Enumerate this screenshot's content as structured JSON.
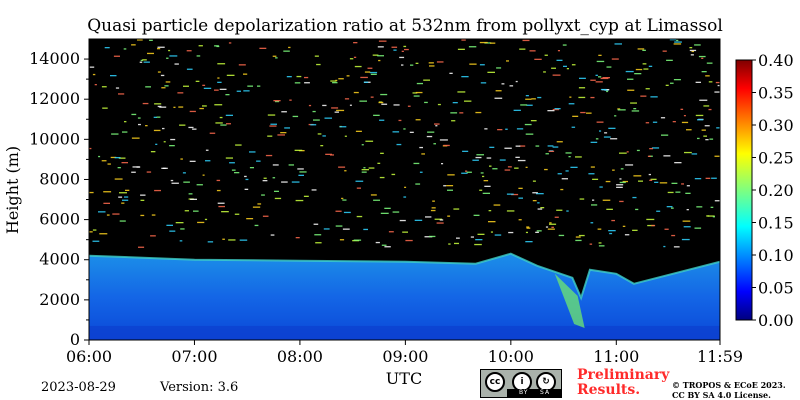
{
  "chart_data": {
    "type": "heatmap",
    "title": "Quasi particle depolarization ratio at 532nm from pollyxt_cyp at Limassol",
    "xlabel": "UTC",
    "ylabel": "Height (m)",
    "x_ticks": [
      "06:00",
      "07:00",
      "08:00",
      "09:00",
      "10:00",
      "11:00",
      "11:59"
    ],
    "x_range": [
      "06:00",
      "11:59"
    ],
    "y_ticks": [
      "0",
      "2000",
      "4000",
      "6000",
      "8000",
      "10000",
      "12000",
      "14000"
    ],
    "ylim": [
      0,
      15000
    ],
    "colorbar": {
      "ticks": [
        "0.00",
        "0.05",
        "0.10",
        "0.15",
        "0.20",
        "0.25",
        "0.30",
        "0.35",
        "0.40"
      ],
      "range": [
        0,
        0.4
      ],
      "colormap": "jet"
    },
    "aerosol_layer_top_m": [
      {
        "utc": "06:00",
        "height_m": 4200
      },
      {
        "utc": "07:00",
        "height_m": 4000
      },
      {
        "utc": "08:00",
        "height_m": 3950
      },
      {
        "utc": "09:00",
        "height_m": 3900
      },
      {
        "utc": "09:40",
        "height_m": 3800
      },
      {
        "utc": "10:00",
        "height_m": 4300
      },
      {
        "utc": "10:15",
        "height_m": 3700
      },
      {
        "utc": "10:35",
        "height_m": 3100
      },
      {
        "utc": "10:40",
        "height_m": 2100
      },
      {
        "utc": "10:45",
        "height_m": 3500
      },
      {
        "utc": "11:00",
        "height_m": 3300
      },
      {
        "utc": "11:10",
        "height_m": 2800
      },
      {
        "utc": "11:59",
        "height_m": 3900
      }
    ],
    "background_color": "#000000"
  },
  "footer": {
    "date": "2023-08-29",
    "version": "Version: 3.6",
    "preliminary_line1": "Preliminary",
    "preliminary_line2": "Results.",
    "copyright_line1": "© TROPOS & ECoE 2023.",
    "copyright_line2": "CC BY SA 4.0 License."
  },
  "license_badge": {
    "cc": "cc",
    "by": "BY",
    "sa": "SA"
  }
}
